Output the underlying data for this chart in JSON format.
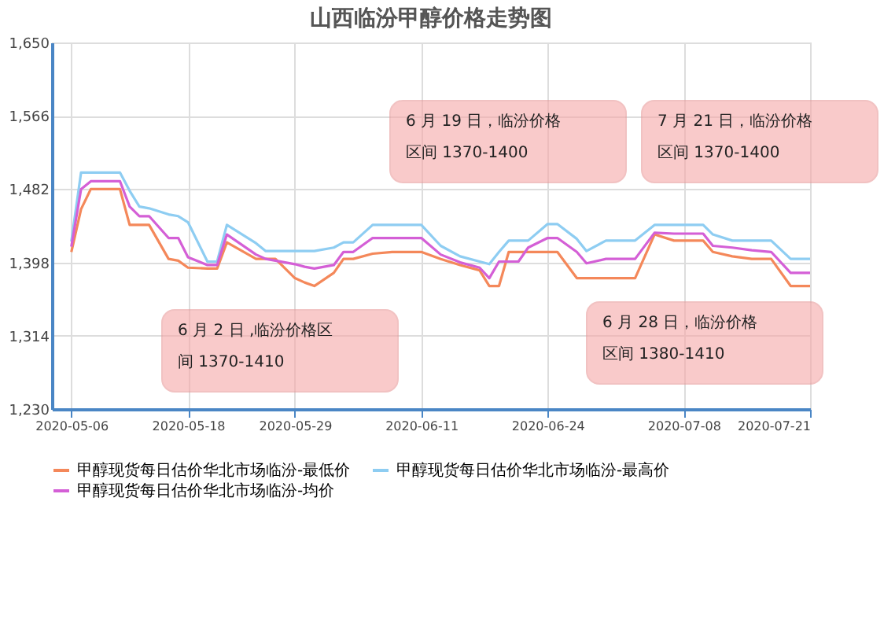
{
  "chart_data": {
    "type": "line",
    "title": "山西临汾甲醇价格走势图",
    "x": [
      "2020-05-06",
      "2020-05-07",
      "2020-05-08",
      "2020-05-11",
      "2020-05-12",
      "2020-05-13",
      "2020-05-14",
      "2020-05-16",
      "2020-05-17",
      "2020-05-18",
      "2020-05-20",
      "2020-05-21",
      "2020-05-22",
      "2020-05-25",
      "2020-05-26",
      "2020-05-27",
      "2020-05-29",
      "2020-05-30",
      "2020-05-31",
      "2020-06-02",
      "2020-06-03",
      "2020-06-04",
      "2020-06-06",
      "2020-06-08",
      "2020-06-11",
      "2020-06-13",
      "2020-06-15",
      "2020-06-17",
      "2020-06-18",
      "2020-06-19",
      "2020-06-20",
      "2020-06-21",
      "2020-06-22",
      "2020-06-24",
      "2020-06-25",
      "2020-06-27",
      "2020-06-28",
      "2020-06-30",
      "2020-07-03",
      "2020-07-05",
      "2020-07-07",
      "2020-07-10",
      "2020-07-11",
      "2020-07-13",
      "2020-07-15",
      "2020-07-17",
      "2020-07-19",
      "2020-07-21"
    ],
    "series": [
      {
        "name": "甲醇现货每日估价华北市场临汾-最低价",
        "color": "#f4885a",
        "values": [
          1410,
          1459,
          1482,
          1482,
          1441,
          1441,
          1441,
          1402,
          1400,
          1392,
          1391,
          1391,
          1421,
          1402,
          1402,
          1402,
          1380,
          1375,
          1371,
          1386,
          1402,
          1402,
          1408,
          1410,
          1410,
          1402,
          1395,
          1389,
          1371,
          1371,
          1410,
          1410,
          1410,
          1410,
          1410,
          1380,
          1380,
          1380,
          1380,
          1430,
          1423,
          1423,
          1410,
          1405,
          1402,
          1402,
          1371,
          1371
        ]
      },
      {
        "name": "甲醇现货每日估价华北市场临汾-最高价",
        "color": "#8ecdf2",
        "values": [
          1422,
          1501,
          1501,
          1501,
          1480,
          1462,
          1460,
          1453,
          1451,
          1444,
          1399,
          1399,
          1441,
          1420,
          1411,
          1411,
          1411,
          1411,
          1411,
          1415,
          1421,
          1421,
          1441,
          1441,
          1441,
          1417,
          1405,
          1399,
          1396,
          1410,
          1423,
          1423,
          1423,
          1442,
          1442,
          1425,
          1411,
          1423,
          1423,
          1441,
          1441,
          1441,
          1430,
          1423,
          1423,
          1423,
          1402,
          1402
        ]
      },
      {
        "name": "甲醇现货每日估价华北市场临汾-均价",
        "color": "#d45fd6",
        "values": [
          1416,
          1482,
          1491,
          1491,
          1462,
          1451,
          1451,
          1426,
          1426,
          1404,
          1395,
          1395,
          1430,
          1407,
          1402,
          1400,
          1396,
          1393,
          1391,
          1395,
          1410,
          1410,
          1426,
          1426,
          1426,
          1407,
          1398,
          1392,
          1380,
          1399,
          1399,
          1399,
          1415,
          1426,
          1426,
          1410,
          1397,
          1402,
          1402,
          1432,
          1431,
          1431,
          1417,
          1415,
          1412,
          1410,
          1386,
          1386
        ]
      }
    ],
    "ylim": [
      1230,
      1650
    ],
    "yticks": [
      {
        "value": 1230,
        "label": "1,230"
      },
      {
        "value": 1314,
        "label": "1,314"
      },
      {
        "value": 1398,
        "label": "1,398"
      },
      {
        "value": 1482,
        "label": "1,482"
      },
      {
        "value": 1566,
        "label": "1,566"
      },
      {
        "value": 1650,
        "label": "1,650"
      }
    ],
    "xlim": [
      "2020-05-04",
      "2020-07-21"
    ],
    "xticks": [
      {
        "value": "2020-05-06",
        "label": "2020-05-06"
      },
      {
        "value": "2020-05-18",
        "label": "2020-05-18"
      },
      {
        "value": "2020-05-29",
        "label": "2020-05-29"
      },
      {
        "value": "2020-06-11",
        "label": "2020-06-11"
      },
      {
        "value": "2020-06-24",
        "label": "2020-06-24"
      },
      {
        "value": "2020-07-08",
        "label": "2020-07-08"
      },
      {
        "value": "2020-07-21",
        "label": "2020-07-21"
      }
    ],
    "annotations": [
      "6 月 2 日 ,临汾价格区间 1370-1410",
      "6 月 19 日，临汾价格区间 1370-1400",
      "6 月 28 日，临汾价格区间 1380-1410",
      "7 月 21 日，临汾价格区间 1370-1400"
    ],
    "grid": true,
    "legend": "bottom",
    "marker": "none",
    "line_style": "solid"
  }
}
